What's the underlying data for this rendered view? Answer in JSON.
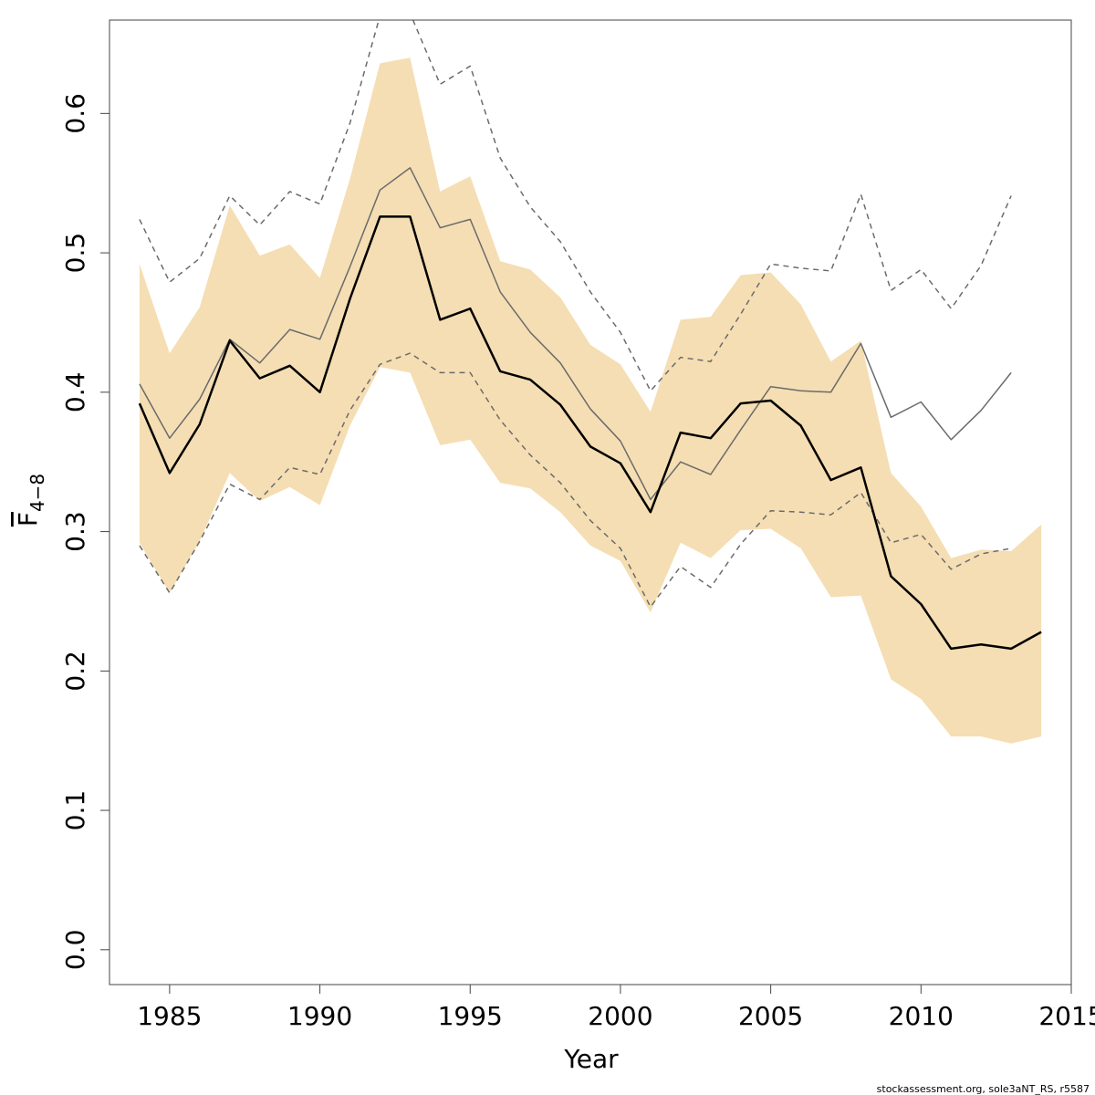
{
  "chart_data": {
    "type": "line",
    "xlabel": "Year",
    "ylabel_main": "F",
    "ylabel_sub": "4−8",
    "xlim": [
      1983,
      2015
    ],
    "ylim": [
      -0.025,
      0.667
    ],
    "xticks": [
      1985,
      1990,
      1995,
      2000,
      2005,
      2010,
      2015
    ],
    "yticks": [
      0.0,
      0.1,
      0.2,
      0.3,
      0.4,
      0.5,
      0.6
    ],
    "ytick_labels": [
      "0.0",
      "0.1",
      "0.2",
      "0.3",
      "0.4",
      "0.5",
      "0.6"
    ],
    "colors": {
      "band": "#f5deb3",
      "main": "#000000",
      "retro": "#6b6b6b"
    },
    "band": {
      "x": [
        1984,
        1985,
        1986,
        1987,
        1988,
        1989,
        1990,
        1991,
        1992,
        1993,
        1994,
        1995,
        1996,
        1997,
        1998,
        1999,
        2000,
        2001,
        2002,
        2003,
        2004,
        2005,
        2006,
        2007,
        2008,
        2009,
        2010,
        2011,
        2012,
        2013,
        2014
      ],
      "lower": [
        0.292,
        0.256,
        0.293,
        0.342,
        0.322,
        0.332,
        0.319,
        0.376,
        0.418,
        0.414,
        0.362,
        0.366,
        0.335,
        0.331,
        0.314,
        0.29,
        0.279,
        0.242,
        0.292,
        0.281,
        0.301,
        0.302,
        0.288,
        0.253,
        0.254,
        0.194,
        0.18,
        0.153,
        0.153,
        0.148,
        0.153
      ],
      "upper": [
        0.492,
        0.428,
        0.461,
        0.534,
        0.498,
        0.506,
        0.482,
        0.553,
        0.636,
        0.64,
        0.544,
        0.555,
        0.494,
        0.488,
        0.468,
        0.434,
        0.42,
        0.386,
        0.452,
        0.454,
        0.484,
        0.486,
        0.463,
        0.422,
        0.437,
        0.342,
        0.318,
        0.281,
        0.287,
        0.286,
        0.305
      ]
    },
    "series": [
      {
        "style": "solid-thick",
        "x": [
          1984,
          1985,
          1986,
          1987,
          1988,
          1989,
          1990,
          1991,
          1992,
          1993,
          1994,
          1995,
          1996,
          1997,
          1998,
          1999,
          2000,
          2001,
          2002,
          2003,
          2004,
          2005,
          2006,
          2007,
          2008,
          2009,
          2010,
          2011,
          2012,
          2013,
          2014
        ],
        "values": [
          0.392,
          0.342,
          0.377,
          0.437,
          0.41,
          0.419,
          0.4,
          0.467,
          0.526,
          0.526,
          0.452,
          0.46,
          0.415,
          0.409,
          0.391,
          0.361,
          0.349,
          0.314,
          0.371,
          0.367,
          0.392,
          0.394,
          0.376,
          0.337,
          0.346,
          0.268,
          0.248,
          0.216,
          0.219,
          0.216,
          0.228
        ]
      },
      {
        "style": "solid-thin",
        "x": [
          1984,
          1985,
          1986,
          1987,
          1988,
          1989,
          1990,
          1991,
          1992,
          1993,
          1994,
          1995,
          1996,
          1997,
          1998,
          1999,
          2000,
          2001,
          2002,
          2003,
          2004,
          2005,
          2006,
          2007,
          2008,
          2009,
          2010,
          2011,
          2012,
          2013
        ],
        "values": [
          0.406,
          0.367,
          0.395,
          0.438,
          0.421,
          0.445,
          0.438,
          0.49,
          0.545,
          0.561,
          0.518,
          0.524,
          0.472,
          0.443,
          0.421,
          0.388,
          0.365,
          0.323,
          0.35,
          0.341,
          0.373,
          0.404,
          0.401,
          0.4,
          0.435,
          0.382,
          0.393,
          0.366,
          0.387,
          0.414
        ]
      },
      {
        "style": "dashed",
        "x": [
          1984,
          1985,
          1986,
          1987,
          1988,
          1989,
          1990,
          1991,
          1992,
          1993,
          1994,
          1995,
          1996,
          1997,
          1998,
          1999,
          2000,
          2001,
          2002,
          2003,
          2004,
          2005,
          2006,
          2007,
          2008,
          2009,
          2010,
          2011,
          2012,
          2013
        ],
        "values": [
          0.524,
          0.479,
          0.496,
          0.541,
          0.52,
          0.544,
          0.535,
          0.593,
          0.67,
          0.672,
          0.621,
          0.634,
          0.568,
          0.533,
          0.508,
          0.472,
          0.443,
          0.401,
          0.425,
          0.422,
          0.456,
          0.492,
          0.489,
          0.487,
          0.542,
          0.473,
          0.488,
          0.46,
          0.491,
          0.541
        ]
      },
      {
        "style": "dashed",
        "x": [
          1984,
          1985,
          1986,
          1987,
          1988,
          1989,
          1990,
          1991,
          1992,
          1993,
          1994,
          1995,
          1996,
          1997,
          1998,
          1999,
          2000,
          2001,
          2002,
          2003,
          2004,
          2005,
          2006,
          2007,
          2008,
          2009,
          2010,
          2011,
          2012,
          2013
        ],
        "values": [
          0.29,
          0.256,
          0.293,
          0.334,
          0.323,
          0.346,
          0.341,
          0.387,
          0.42,
          0.428,
          0.414,
          0.414,
          0.38,
          0.355,
          0.335,
          0.308,
          0.288,
          0.246,
          0.275,
          0.26,
          0.291,
          0.315,
          0.314,
          0.312,
          0.328,
          0.292,
          0.298,
          0.273,
          0.284,
          0.288
        ]
      }
    ]
  },
  "footer": "stockassessment.org, sole3aNT_RS, r5587"
}
